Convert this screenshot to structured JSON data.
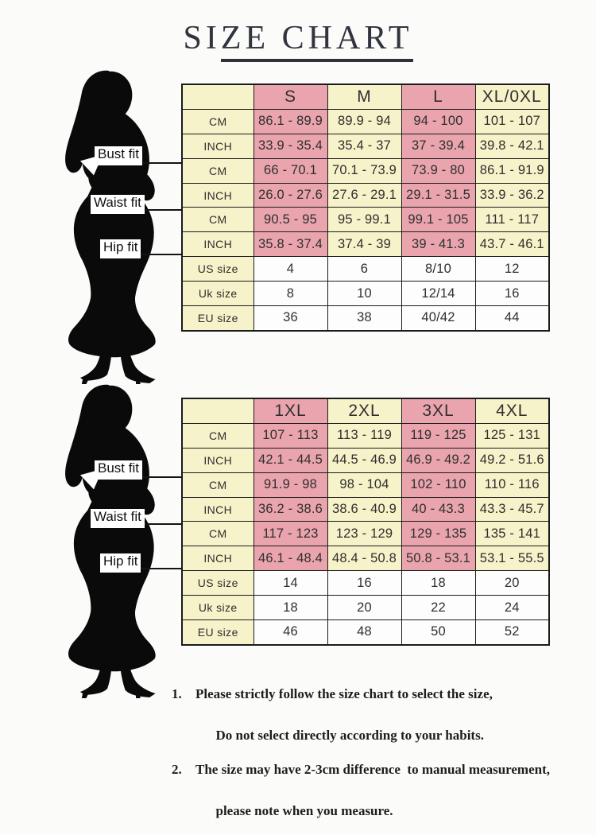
{
  "title": "SIZE CHART",
  "figure": {
    "bust_label": "Bust fit",
    "waist_label": "Waist fit",
    "hip_label": "Hip fit"
  },
  "chart_data": [
    {
      "type": "table",
      "title": "SIZE CHART",
      "columns": [
        "",
        "S",
        "M",
        "L",
        "XL/0XL"
      ],
      "row_groups": [
        "Bust fit",
        "Waist fit",
        "Hip fit"
      ],
      "rows": [
        [
          "CM",
          "86.1 - 89.9",
          "89.9 - 94",
          "94 - 100",
          "101 - 107"
        ],
        [
          "INCH",
          "33.9 - 35.4",
          "35.4 - 37",
          "37 - 39.4",
          "39.8 - 42.1"
        ],
        [
          "CM",
          "66 - 70.1",
          "70.1 - 73.9",
          "73.9 - 80",
          "86.1 - 91.9"
        ],
        [
          "INCH",
          "26.0 - 27.6",
          "27.6 - 29.1",
          "29.1 - 31.5",
          "33.9 - 36.2"
        ],
        [
          "CM",
          "90.5 - 95",
          "95 - 99.1",
          "99.1 - 105",
          "111 - 117"
        ],
        [
          "INCH",
          "35.8 - 37.4",
          "37.4 - 39",
          "39 - 41.3",
          "43.7 - 46.1"
        ],
        [
          "US size",
          "4",
          "6",
          "8/10",
          "12"
        ],
        [
          "Uk size",
          "8",
          "10",
          "12/14",
          "16"
        ],
        [
          "EU size",
          "36",
          "38",
          "40/42",
          "44"
        ]
      ]
    },
    {
      "type": "table",
      "title": "SIZE CHART",
      "columns": [
        "",
        "1XL",
        "2XL",
        "3XL",
        "4XL"
      ],
      "row_groups": [
        "Bust fit",
        "Waist fit",
        "Hip fit"
      ],
      "rows": [
        [
          "CM",
          "107 - 113",
          "113 - 119",
          "119 - 125",
          "125 - 131"
        ],
        [
          "INCH",
          "42.1 - 44.5",
          "44.5 - 46.9",
          "46.9 - 49.2",
          "49.2 - 51.6"
        ],
        [
          "CM",
          "91.9 - 98",
          "98 - 104",
          "102 - 110",
          "110 - 116"
        ],
        [
          "INCH",
          "36.2 - 38.6",
          "38.6 - 40.9",
          "40 - 43.3",
          "43.3 - 45.7"
        ],
        [
          "CM",
          "117 - 123",
          "123 - 129",
          "129 - 135",
          "135 - 141"
        ],
        [
          "INCH",
          "46.1 - 48.4",
          "48.4 - 50.8",
          "50.8 - 53.1",
          "53.1 - 55.5"
        ],
        [
          "US size",
          "14",
          "16",
          "18",
          "20"
        ],
        [
          "Uk size",
          "18",
          "20",
          "22",
          "24"
        ],
        [
          "EU size",
          "46",
          "48",
          "50",
          "52"
        ]
      ]
    }
  ],
  "notes": [
    {
      "number": "1.",
      "line1": "Please strictly follow the size chart to select the size,",
      "line2": "Do not select directly according to your habits."
    },
    {
      "number": "2.",
      "line1": "The size may have 2-3cm difference  to manual measurement,",
      "line2": "please note when you measure."
    }
  ],
  "colors": {
    "pink": "#e9a4ae",
    "cream": "#f6f2c9",
    "white": "#fdfdfd",
    "border": "#1b1b1b"
  }
}
